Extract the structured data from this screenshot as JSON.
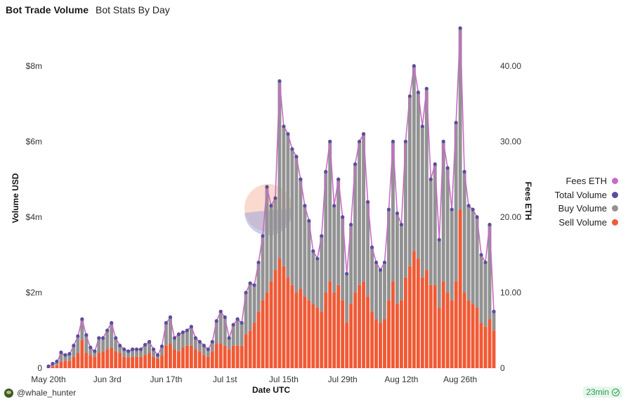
{
  "header": {
    "title": "Bot Trade Volume",
    "subtitle": "Bot Stats By Day"
  },
  "footer": {
    "user": "@whale_hunter",
    "freshness": "23min"
  },
  "colors": {
    "sell": "#f05a35",
    "buy": "#929292",
    "total": "#5a4e9c",
    "fees": "#c96bc8"
  },
  "chart_data": {
    "type": "bar",
    "stacked": true,
    "xlabel": "Date UTC",
    "ylabel": "Volume USD",
    "y2label": "Fees ETH",
    "ylim": [
      0,
      9000000
    ],
    "y2lim": [
      0,
      45
    ],
    "yticks": [
      "0",
      "$2m",
      "$4m",
      "$6m",
      "$8m"
    ],
    "y2ticks": [
      "0",
      "10.00",
      "20.00",
      "30.00",
      "40.00"
    ],
    "xticks": [
      "May 20th",
      "Jun 3rd",
      "Jun 17th",
      "Jul 1st",
      "Jul 15th",
      "Jul 29th",
      "Aug 12th",
      "Aug 26th"
    ],
    "xtick_index": [
      0,
      14,
      28,
      42,
      56,
      70,
      84,
      98
    ],
    "legend": [
      {
        "name": "Fees ETH",
        "key": "fees"
      },
      {
        "name": "Total Volume",
        "key": "total"
      },
      {
        "name": "Buy Volume",
        "key": "buy"
      },
      {
        "name": "Sell Volume",
        "key": "sell"
      }
    ],
    "legend_position": "right",
    "grid": false,
    "series": [
      {
        "name": "Total Volume",
        "values": [
          0.05,
          0.12,
          0.18,
          0.42,
          0.35,
          0.38,
          0.6,
          0.85,
          1.3,
          0.88,
          0.55,
          0.45,
          0.8,
          0.8,
          1.0,
          1.2,
          0.8,
          0.6,
          0.5,
          0.45,
          0.5,
          0.5,
          0.5,
          0.62,
          0.7,
          0.5,
          0.35,
          0.58,
          1.2,
          1.35,
          0.8,
          0.9,
          0.95,
          1.0,
          1.1,
          0.8,
          0.7,
          0.6,
          0.5,
          0.7,
          1.25,
          1.5,
          1.35,
          0.8,
          1.15,
          1.3,
          1.2,
          2.0,
          2.25,
          2.2,
          2.8,
          3.5,
          4.8,
          4.3,
          4.5,
          7.6,
          6.4,
          6.2,
          5.8,
          5.6,
          5.0,
          4.3,
          3.9,
          3.1,
          2.9,
          3.5,
          5.2,
          6.0,
          4.3,
          5.0,
          4.0,
          2.5,
          3.8,
          5.4,
          6.0,
          6.2,
          4.4,
          3.2,
          2.8,
          2.6,
          2.8,
          4.2,
          6.0,
          4.1,
          3.8,
          6.0,
          7.2,
          8.0,
          7.3,
          6.4,
          7.4,
          5.0,
          5.4,
          3.4,
          6.0,
          5.3,
          4.2,
          6.5,
          9.0,
          5.2,
          4.3,
          4.2,
          4.0,
          3.0,
          2.8,
          3.8,
          1.5
        ]
      },
      {
        "name": "Sell Volume",
        "values": [
          0.02,
          0.05,
          0.08,
          0.18,
          0.2,
          0.2,
          0.3,
          0.4,
          0.75,
          0.4,
          0.35,
          0.3,
          0.4,
          0.45,
          0.5,
          0.55,
          0.45,
          0.4,
          0.3,
          0.28,
          0.3,
          0.3,
          0.3,
          0.35,
          0.4,
          0.3,
          0.25,
          0.35,
          0.6,
          0.65,
          0.5,
          0.45,
          0.55,
          0.6,
          0.6,
          0.5,
          0.45,
          0.35,
          0.3,
          0.45,
          0.65,
          0.65,
          0.6,
          0.5,
          0.6,
          0.6,
          0.6,
          0.9,
          1.0,
          1.2,
          1.5,
          1.8,
          2.0,
          2.3,
          2.6,
          2.9,
          2.7,
          2.4,
          2.2,
          2.0,
          2.1,
          1.9,
          1.8,
          1.7,
          1.6,
          1.5,
          2.0,
          2.3,
          2.0,
          2.2,
          1.8,
          1.2,
          1.7,
          2.0,
          2.2,
          2.3,
          1.9,
          1.5,
          1.3,
          1.2,
          1.3,
          1.8,
          2.3,
          1.7,
          1.8,
          2.4,
          2.7,
          3.1,
          2.9,
          2.4,
          2.6,
          2.2,
          2.2,
          1.6,
          2.3,
          2.0,
          1.8,
          2.3,
          4.2,
          2.0,
          1.8,
          1.7,
          1.6,
          1.2,
          1.1,
          1.3,
          1.0
        ]
      },
      {
        "name": "Fees ETH",
        "values": [
          0.2,
          0.5,
          0.8,
          2.0,
          1.7,
          1.8,
          3.0,
          4.2,
          6.5,
          4.3,
          2.7,
          2.2,
          4.0,
          4.0,
          5.0,
          6.0,
          4.0,
          3.0,
          2.5,
          2.2,
          2.5,
          2.5,
          2.5,
          3.1,
          3.5,
          2.5,
          1.7,
          2.9,
          6.0,
          6.7,
          4.0,
          4.5,
          4.7,
          5.0,
          5.5,
          4.0,
          3.5,
          3.0,
          2.5,
          3.5,
          6.2,
          7.5,
          6.7,
          4.0,
          5.7,
          6.5,
          6.0,
          10.0,
          11.2,
          11.0,
          14.0,
          17.5,
          24.0,
          21.5,
          22.5,
          38.0,
          32.0,
          31.0,
          29.0,
          28.0,
          25.0,
          21.5,
          19.5,
          15.5,
          14.5,
          17.5,
          26.0,
          30.0,
          21.5,
          25.0,
          20.0,
          12.5,
          19.0,
          27.0,
          30.0,
          31.0,
          22.0,
          16.0,
          14.0,
          13.0,
          14.0,
          21.0,
          30.0,
          20.5,
          19.0,
          30.0,
          36.0,
          40.0,
          36.5,
          32.0,
          37.0,
          25.0,
          27.0,
          17.0,
          30.0,
          26.5,
          21.0,
          32.5,
          45.0,
          26.0,
          21.5,
          21.0,
          20.0,
          15.0,
          14.0,
          19.0,
          7.5
        ]
      }
    ],
    "values_unit": "millions USD"
  }
}
